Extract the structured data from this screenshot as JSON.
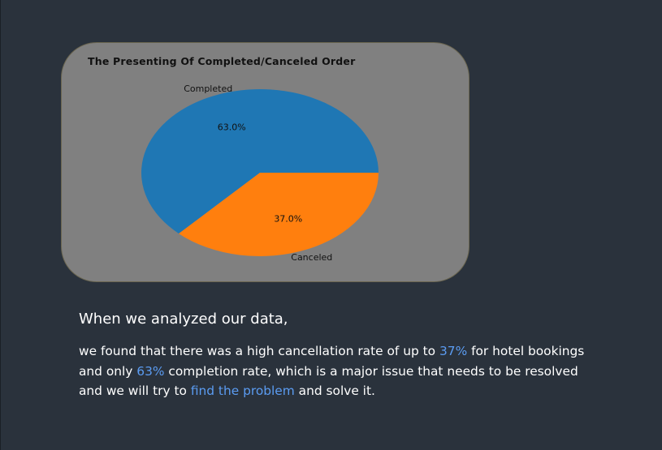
{
  "chart_data": {
    "type": "pie",
    "title": "The Presenting Of Completed/Canceled Order",
    "slices": [
      {
        "label": "Completed",
        "value": 63.0,
        "pct_label": "63.0%",
        "color": "#1f77b4"
      },
      {
        "label": "Canceled",
        "value": 37.0,
        "pct_label": "37.0%",
        "color": "#ff7f0e"
      }
    ],
    "card_background": "#808080"
  },
  "text": {
    "heading": "When we analyzed our data,",
    "body_1": "we found that there was a high cancellation rate of up to ",
    "highlight_1": "37%",
    "body_2": " for hotel bookings and only ",
    "highlight_2": "63%",
    "body_3": " completion rate, which is a major issue that needs to be resolved and we will try to ",
    "highlight_3": "find the problem",
    "body_4": " and solve it.",
    "highlight_color": "#5b9cf2"
  }
}
